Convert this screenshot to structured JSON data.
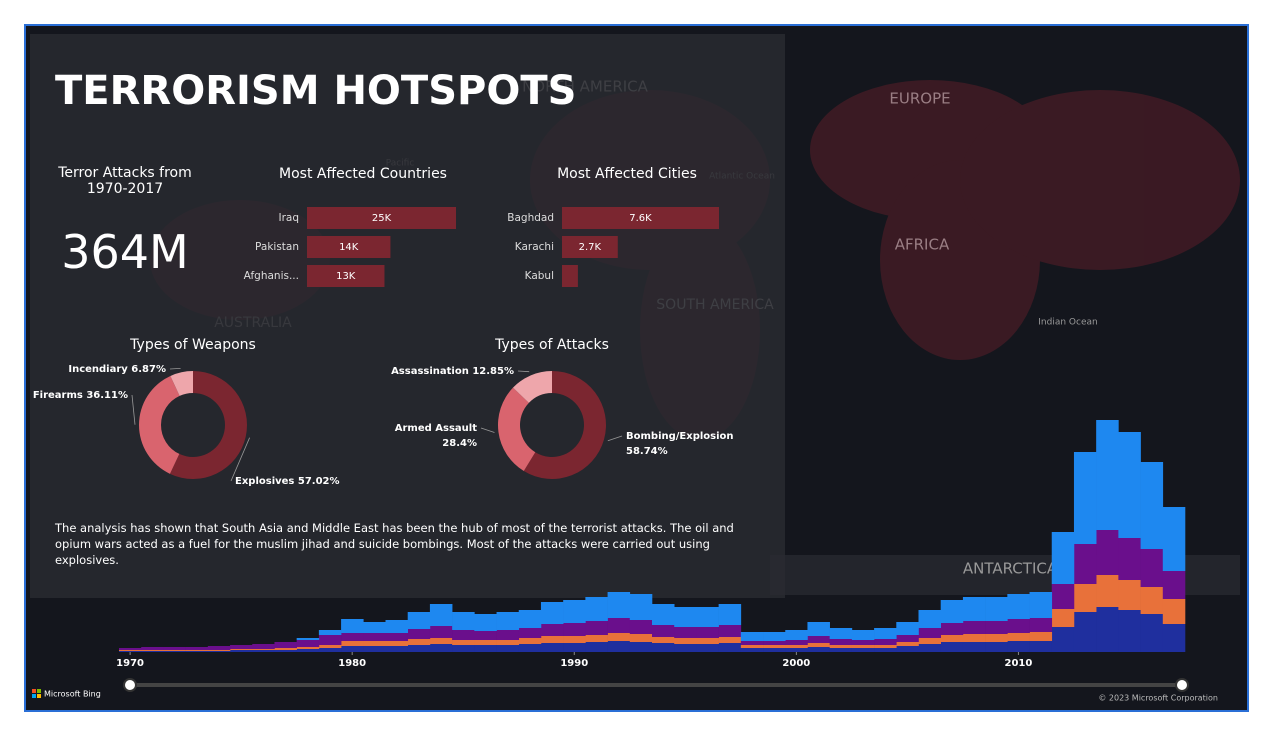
{
  "header": {
    "title": "TERRORISM HOTSPOTS"
  },
  "kpi": {
    "label": "Terror Attacks from 1970-2017",
    "value": "364M"
  },
  "chart_data": [
    {
      "type": "bar",
      "orientation": "horizontal",
      "title": "Most Affected Countries",
      "categories": [
        "Iraq",
        "Pakistan",
        "Afghanis..."
      ],
      "values": [
        25000,
        14000,
        13000
      ],
      "value_labels": [
        "25K",
        "14K",
        "13K"
      ],
      "color": "#7b2630"
    },
    {
      "type": "bar",
      "orientation": "horizontal",
      "title": "Most Affected Cities",
      "categories": [
        "Baghdad",
        "Karachi",
        "Kabul"
      ],
      "values": [
        7600,
        2700,
        770
      ],
      "value_labels": [
        "7.6K",
        "2.7K",
        null
      ],
      "color": "#7b2630"
    },
    {
      "type": "pie",
      "title": "Types of Weapons",
      "categories": [
        "Explosives",
        "Firearms",
        "Incendiary"
      ],
      "values": [
        57.02,
        36.11,
        6.87
      ],
      "value_labels": [
        "57.02%",
        "36.11%",
        "6.87%"
      ],
      "colors": [
        "#7b2630",
        "#d9646e",
        "#eea6ab"
      ]
    },
    {
      "type": "pie",
      "title": "Types of Attacks",
      "categories": [
        "Bombing/Explosion",
        "Armed Assault",
        "Assassination"
      ],
      "values": [
        58.74,
        28.4,
        12.85
      ],
      "value_labels": [
        "58.74%",
        "28.4%",
        "12.85%"
      ],
      "colors": [
        "#7b2630",
        "#d9646e",
        "#eea6ab"
      ]
    },
    {
      "type": "area",
      "stacked": true,
      "x": [
        1970,
        1971,
        1972,
        1973,
        1974,
        1975,
        1976,
        1977,
        1978,
        1979,
        1980,
        1981,
        1982,
        1983,
        1984,
        1985,
        1986,
        1987,
        1988,
        1989,
        1990,
        1991,
        1992,
        1993,
        1994,
        1995,
        1996,
        1997,
        1998,
        1999,
        2000,
        2001,
        2002,
        2003,
        2004,
        2005,
        2006,
        2007,
        2008,
        2009,
        2010,
        2011,
        2012,
        2013,
        2014,
        2015,
        2016,
        2017
      ],
      "xlim": [
        1969.5,
        2017.5
      ],
      "xticks": [
        1970,
        1980,
        1990,
        2000,
        2010
      ],
      "series": [
        {
          "color": "#1f2f9e",
          "values": [
            1,
            1,
            1,
            1,
            1,
            2,
            2,
            2,
            3,
            4,
            6,
            6,
            6,
            7,
            8,
            7,
            7,
            7,
            8,
            9,
            9,
            10,
            11,
            10,
            9,
            8,
            8,
            9,
            4,
            4,
            4,
            5,
            4,
            4,
            4,
            6,
            8,
            10,
            10,
            10,
            11,
            11,
            25,
            40,
            45,
            42,
            38,
            28
          ]
        },
        {
          "color": "#e8713a",
          "values": [
            1,
            1,
            1,
            1,
            1,
            1,
            1,
            2,
            2,
            3,
            5,
            5,
            5,
            6,
            6,
            5,
            5,
            5,
            6,
            7,
            7,
            7,
            8,
            8,
            6,
            6,
            6,
            6,
            3,
            3,
            3,
            4,
            3,
            3,
            3,
            4,
            6,
            7,
            8,
            8,
            8,
            9,
            18,
            28,
            32,
            30,
            27,
            25
          ]
        },
        {
          "color": "#6a0f8c",
          "values": [
            2,
            3,
            3,
            3,
            4,
            4,
            5,
            6,
            7,
            10,
            8,
            8,
            8,
            10,
            12,
            10,
            9,
            10,
            10,
            12,
            13,
            14,
            15,
            14,
            12,
            11,
            11,
            12,
            4,
            4,
            5,
            7,
            6,
            5,
            6,
            7,
            10,
            12,
            13,
            13,
            14,
            14,
            25,
            40,
            45,
            42,
            38,
            28
          ]
        },
        {
          "color": "#1e88f0",
          "values": [
            0,
            0,
            0,
            0,
            0,
            0,
            0,
            0,
            2,
            5,
            14,
            11,
            13,
            17,
            22,
            18,
            17,
            18,
            18,
            22,
            23,
            24,
            26,
            26,
            21,
            20,
            20,
            21,
            9,
            9,
            10,
            14,
            11,
            10,
            11,
            13,
            18,
            23,
            24,
            24,
            25,
            26,
            52,
            92,
            110,
            106,
            87,
            64
          ]
        }
      ]
    }
  ],
  "narrative": "The analysis has shown that South Asia and Middle East has been the hub of most of the terrorist attacks. The oil and opium wars acted as a fuel for the muslim jihad and suicide bombings. Most of the attacks were carried out using explosives.",
  "map_labels": [
    "NORTH AMERICA",
    "EUROPE",
    "AFRICA",
    "SOUTH AMERICA",
    "AUSTRALIA",
    "ANTARCTICA",
    "Atlantic Ocean",
    "Indian Ocean",
    "Pacific"
  ],
  "footer": {
    "brand": "Microsoft Bing",
    "copyright": "© 2023 Microsoft Corporation"
  }
}
